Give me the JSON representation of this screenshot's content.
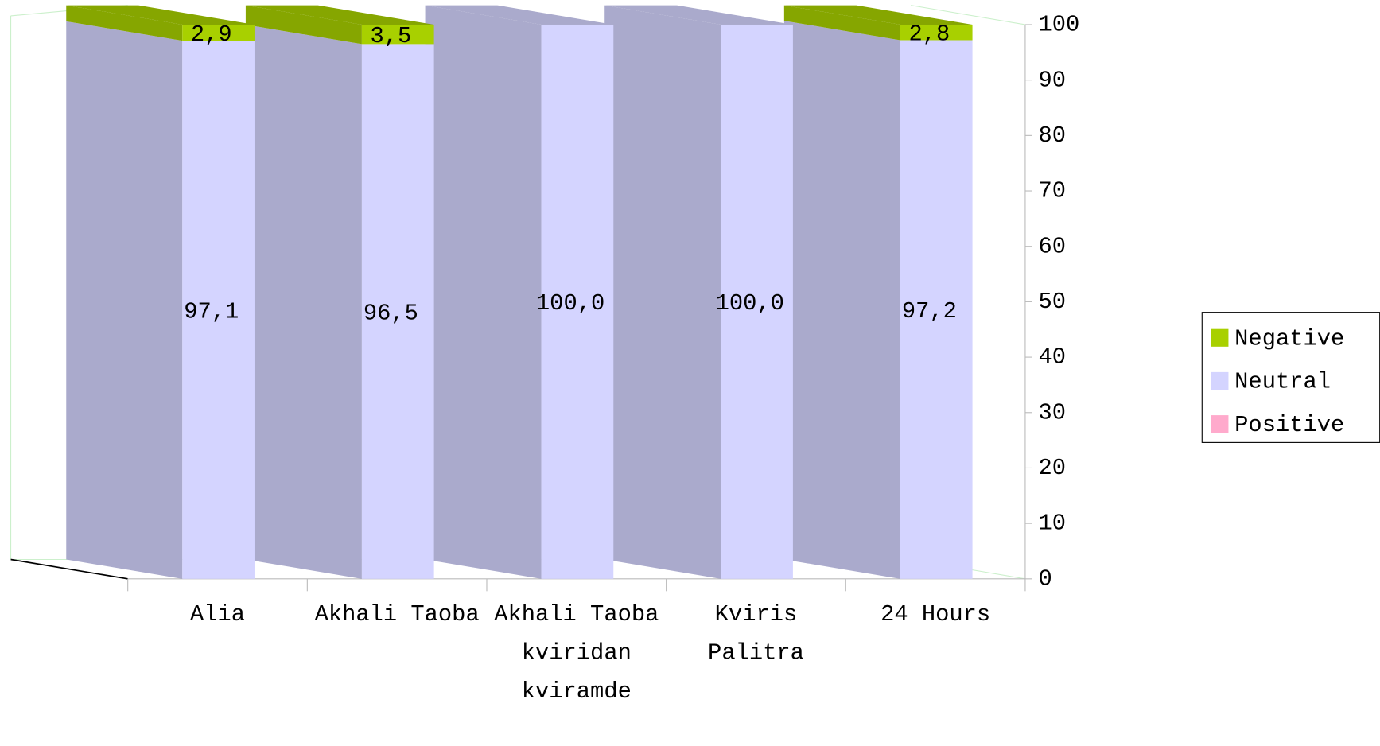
{
  "chart_data": {
    "type": "bar3d_stacked",
    "categories": [
      "Alia",
      "Akhali Taoba",
      "Akhali Taoba kviridan kviramde",
      "Kviris Palitra",
      "24 Hours"
    ],
    "series": [
      {
        "name": "Negative",
        "color": "#a8d000",
        "values": [
          2.9,
          3.5,
          0,
          0,
          2.8
        ],
        "value_labels": [
          "2,9",
          "3,5",
          null,
          null,
          "2,8"
        ]
      },
      {
        "name": "Neutral",
        "color": "#d4d4ff",
        "values": [
          97.1,
          96.5,
          100,
          100,
          97.2
        ],
        "value_labels": [
          "97,1",
          "96,5",
          "100,0",
          "100,0",
          "97,2"
        ]
      },
      {
        "name": "Positive",
        "color": "#ffaacc",
        "values": [
          0,
          0,
          0,
          0,
          0
        ]
      }
    ],
    "stack_order": [
      "Neutral",
      "Negative",
      "Positive"
    ],
    "ylim": [
      0,
      100
    ],
    "yticks": [
      0,
      10,
      20,
      30,
      40,
      50,
      60,
      70,
      80,
      90,
      100
    ],
    "grid": false,
    "legend": "right"
  }
}
